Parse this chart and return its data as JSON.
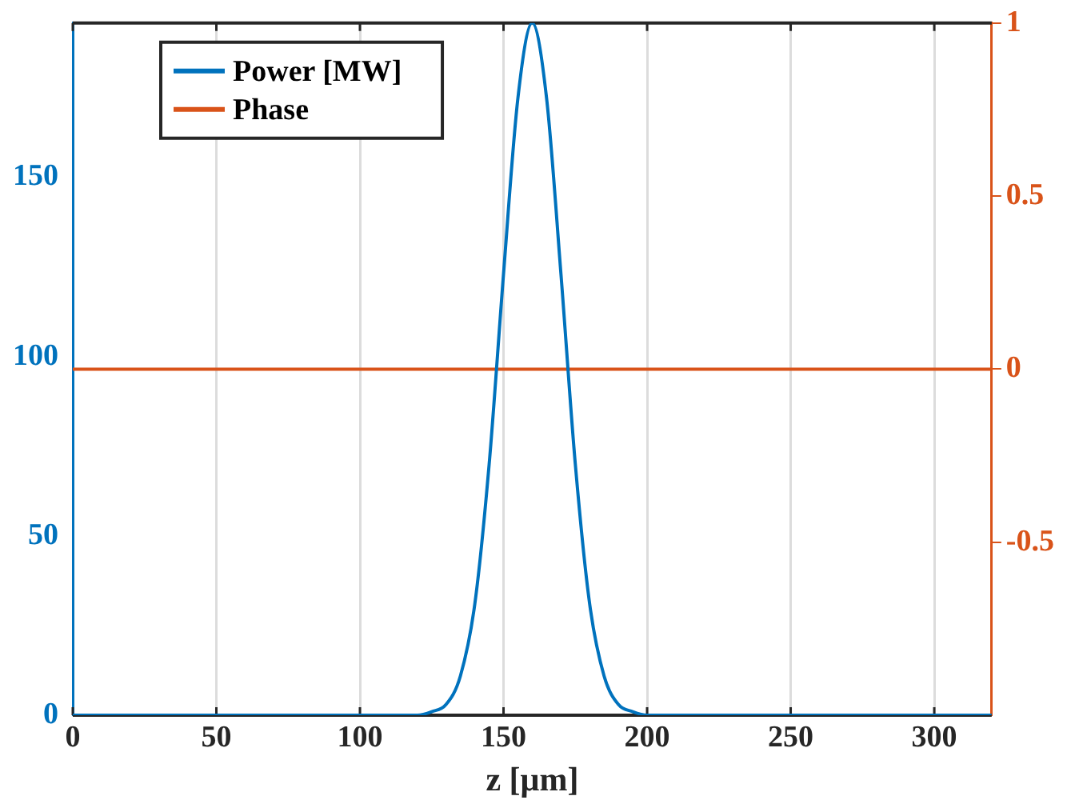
{
  "chart_data": {
    "type": "line",
    "xlabel": "z [μm]",
    "xlim": [
      0,
      320
    ],
    "xticks": [
      0,
      50,
      100,
      150,
      200,
      250,
      300
    ],
    "ylim": [
      0,
      193
    ],
    "yticks": [
      0,
      50,
      100,
      150
    ],
    "y2lim": [
      -1,
      1
    ],
    "y2ticks": [
      -0.5,
      0,
      0.5,
      1
    ],
    "grid": "x",
    "legend": "top left",
    "marker": "none",
    "line_style": "solid",
    "series": [
      {
        "name": "Power [MW]",
        "color": "#0072bd",
        "x": [
          0,
          120,
          125,
          130,
          135,
          140,
          145,
          150,
          155,
          160,
          165,
          170,
          175,
          180,
          185,
          190,
          195,
          200,
          320
        ],
        "values": [
          0,
          0,
          1,
          3,
          11,
          31,
          70,
          123,
          172,
          193,
          172,
          123,
          70,
          31,
          11,
          3,
          1,
          0,
          0
        ]
      },
      {
        "name": "Phase",
        "color": "#d95319",
        "axis": "y2",
        "x": [
          0,
          320
        ],
        "values": [
          0,
          0
        ]
      }
    ]
  }
}
